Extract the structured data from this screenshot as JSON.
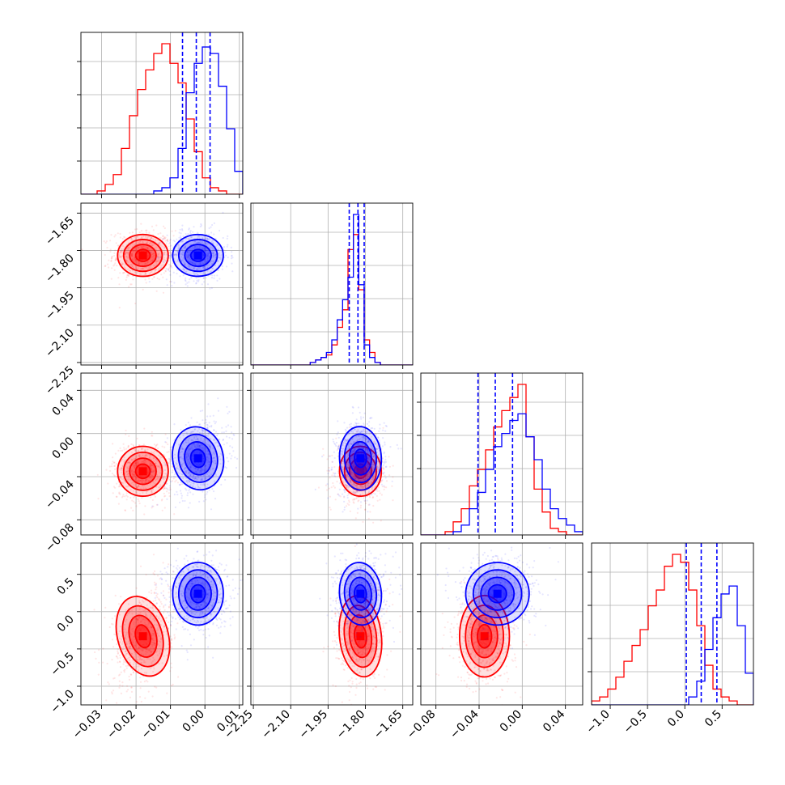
{
  "chart_data": {
    "type": "corner",
    "parameters": [
      {
        "range": [
          -0.036,
          0.011
        ],
        "ticks": [
          -0.03,
          -0.02,
          -0.01,
          0.0,
          0.01
        ],
        "tick_labels": [
          "−0.03",
          "−0.02",
          "−0.01",
          "0.00",
          "0.01"
        ]
      },
      {
        "range": [
          -2.26,
          -1.61
        ],
        "ticks": [
          -2.25,
          -2.1,
          -1.95,
          -1.8,
          -1.65
        ],
        "tick_labels": [
          "−2.25",
          "−2.10",
          "−1.95",
          "−1.80",
          "−1.65"
        ]
      },
      {
        "range": [
          -0.094,
          0.056
        ],
        "ticks": [
          -0.08,
          -0.04,
          0.0,
          0.04
        ],
        "tick_labels": [
          "−0.08",
          "−0.04",
          "0.00",
          "0.04"
        ]
      },
      {
        "range": [
          -1.25,
          0.92
        ],
        "ticks": [
          -1.0,
          -0.5,
          0.0,
          0.5
        ],
        "tick_labels": [
          "−1.0",
          "−0.5",
          "0.0",
          "0.5"
        ]
      }
    ],
    "series": [
      {
        "color": "#ff0000",
        "mean": [
          -0.018,
          -1.82,
          -0.035,
          -0.33
        ],
        "std": [
          0.0035,
          0.04,
          0.011,
          0.26
        ],
        "corr": [
          0.0,
          0.0,
          0.05,
          0.3,
          0.1,
          0.0
        ],
        "histograms": [
          {
            "edges": [
              -0.036,
              0.011
            ],
            "counts": [
              0,
              0,
              1,
              3,
              6,
              14,
              24,
              32,
              38,
              43,
              46,
              40,
              34,
              23,
              13,
              5,
              2,
              1,
              0,
              0
            ]
          },
          {
            "edges": [
              -2.26,
              -1.61
            ],
            "counts": [
              0,
              0,
              0,
              0,
              0,
              0,
              0,
              0,
              0,
              0,
              0,
              1,
              2,
              3,
              4,
              8,
              15,
              22,
              46,
              52,
              30,
              10,
              5,
              1,
              0,
              0,
              0,
              0,
              0,
              0
            ]
          },
          {
            "edges": [
              -0.094,
              0.056
            ],
            "counts": [
              0,
              0,
              0,
              1,
              4,
              8,
              15,
              20,
              26,
              33,
              38,
              42,
              46,
              30,
              14,
              7,
              2,
              1,
              0,
              0
            ]
          },
          {
            "edges": [
              -1.25,
              0.92
            ],
            "counts": [
              1,
              2,
              4,
              7,
              11,
              15,
              19,
              25,
              29,
              35,
              38,
              36,
              29,
              20,
              10,
              4,
              2,
              1,
              0,
              0
            ]
          }
        ]
      },
      {
        "color": "#0000ff",
        "mean": [
          -0.002,
          -1.82,
          -0.023,
          0.24
        ],
        "std": [
          0.0035,
          0.04,
          0.014,
          0.2
        ],
        "corr": [
          0.0,
          0.3,
          0.05,
          0.0,
          0.1,
          0.0
        ],
        "quantile_lines": [
          [
            -0.0065,
            -0.0025,
            0.0015
          ],
          [
            -1.865,
            -1.83,
            -1.805
          ],
          [
            -0.041,
            -0.025,
            -0.009
          ],
          [
            0.02,
            0.22,
            0.43
          ]
        ],
        "histograms": [
          {
            "edges": [
              -0.036,
              0.011
            ],
            "counts": [
              0,
              0,
              0,
              0,
              0,
              0,
              0,
              0,
              0,
              1,
              2,
              5,
              14,
              31,
              40,
              45,
              43,
              33,
              20,
              7
            ]
          },
          {
            "edges": [
              -2.26,
              -1.61
            ],
            "counts": [
              0,
              0,
              0,
              0,
              0,
              0,
              0,
              0,
              0,
              0,
              0,
              1,
              2,
              3,
              5,
              10,
              18,
              26,
              35,
              60,
              32,
              8,
              3,
              1,
              0,
              0,
              0,
              0,
              0,
              0
            ]
          },
          {
            "edges": [
              -0.094,
              0.056
            ],
            "counts": [
              0,
              0,
              0,
              0,
              1,
              3,
              8,
              13,
              20,
              27,
              31,
              35,
              37,
              30,
              23,
              14,
              8,
              5,
              3,
              1
            ]
          },
          {
            "edges": [
              -1.25,
              0.92
            ],
            "counts": [
              0,
              0,
              0,
              0,
              0,
              0,
              0,
              0,
              0,
              0,
              0,
              0,
              2,
              6,
              14,
              22,
              28,
              30,
              20,
              8
            ]
          }
        ]
      }
    ],
    "grid": true
  }
}
